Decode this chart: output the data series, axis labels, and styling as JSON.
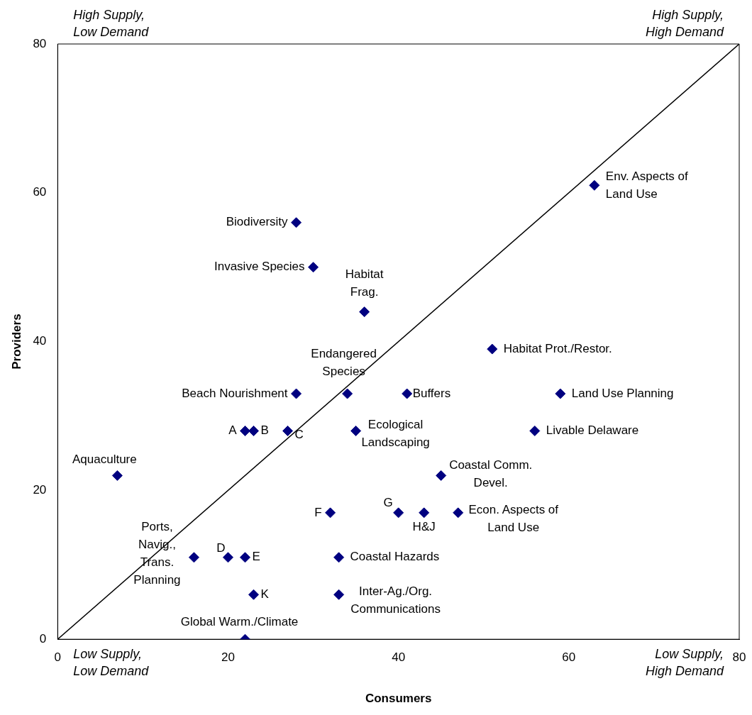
{
  "chart_data": {
    "type": "scatter",
    "xlabel": "Consumers",
    "ylabel": "Providers",
    "xlim": [
      0,
      80
    ],
    "ylim": [
      0,
      80
    ],
    "xticks": [
      0,
      20,
      40,
      60,
      80
    ],
    "yticks": [
      0,
      20,
      40,
      60,
      80
    ],
    "grid": false,
    "legend": false,
    "series": [
      {
        "color": "#000080",
        "marker": "diamond",
        "x": [
          63,
          28,
          30,
          36,
          51,
          34,
          28,
          41,
          59,
          22,
          23,
          27,
          35,
          56,
          7,
          45,
          32,
          40,
          43,
          47,
          16,
          20,
          22,
          33,
          23,
          33,
          22
        ],
        "values": [
          61,
          56,
          50,
          44,
          39,
          33,
          33,
          33,
          33,
          28,
          28,
          28,
          28,
          28,
          22,
          22,
          17,
          17,
          17,
          17,
          11,
          11,
          11,
          11,
          6,
          6,
          0
        ]
      },
      {
        "type": "line",
        "color": "#000000",
        "marker": "none",
        "x": [
          0,
          80
        ],
        "values": [
          0,
          80
        ]
      }
    ],
    "annotations": [
      "High Supply,\nLow Demand",
      "High Supply,\nHigh Demand",
      "Low Supply,\nLow Demand",
      "Low Supply,\nHigh Demand",
      {
        "text": "Env. Aspects of\nLand Use",
        "x": 63,
        "y": 61
      },
      {
        "text": "Biodiversity",
        "x": 28,
        "y": 56
      },
      {
        "text": "Invasive Species",
        "x": 30,
        "y": 50
      },
      {
        "text": "Habitat\nFrag.",
        "x": 36,
        "y": 44
      },
      {
        "text": "Habitat Prot./Restor.",
        "x": 51,
        "y": 39
      },
      {
        "text": "Endangered\nSpecies",
        "x": 34,
        "y": 33
      },
      {
        "text": "Beach Nourishment",
        "x": 28,
        "y": 33
      },
      {
        "text": "Buffers",
        "x": 41,
        "y": 33
      },
      {
        "text": "Land Use Planning",
        "x": 59,
        "y": 33
      },
      {
        "text": "A",
        "x": 22,
        "y": 28
      },
      {
        "text": "B",
        "x": 23,
        "y": 28
      },
      {
        "text": "C",
        "x": 27,
        "y": 28
      },
      {
        "text": "Ecological\nLandscaping",
        "x": 35,
        "y": 28
      },
      {
        "text": "Livable Delaware",
        "x": 56,
        "y": 28
      },
      {
        "text": "Aquaculture",
        "x": 7,
        "y": 22
      },
      {
        "text": "Coastal Comm.\nDevel.",
        "x": 45,
        "y": 22
      },
      {
        "text": "F",
        "x": 32,
        "y": 17
      },
      {
        "text": "G",
        "x": 40,
        "y": 17
      },
      {
        "text": "H&J",
        "x": 43,
        "y": 17
      },
      {
        "text": "Econ. Aspects of\nLand Use",
        "x": 47,
        "y": 17
      },
      {
        "text": "Ports,\nNavig.,\nTrans.\nPlanning",
        "x": 16,
        "y": 11
      },
      {
        "text": "D",
        "x": 20,
        "y": 11
      },
      {
        "text": "E",
        "x": 22,
        "y": 11
      },
      {
        "text": "Coastal Hazards",
        "x": 33,
        "y": 11
      },
      {
        "text": "K",
        "x": 23,
        "y": 6
      },
      {
        "text": "Inter-Ag./Org.\nCommunications",
        "x": 33,
        "y": 6
      },
      {
        "text": "Global Warm./Climate",
        "x": 22,
        "y": 0
      }
    ]
  }
}
